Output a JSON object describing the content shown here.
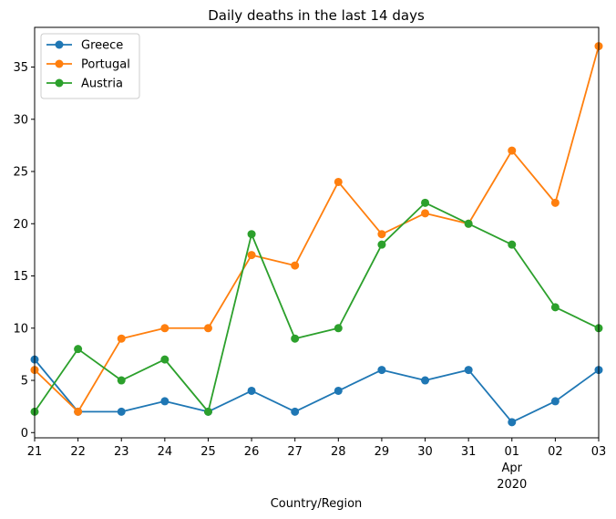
{
  "chart_data": {
    "type": "line",
    "title": "Daily deaths in the last 14 days",
    "xlabel": "Country/Region",
    "ylabel": "",
    "x": [
      "21",
      "22",
      "23",
      "24",
      "25",
      "26",
      "27",
      "28",
      "29",
      "30",
      "31",
      "01",
      "02",
      "03"
    ],
    "x_month_label": "Apr",
    "x_year_label": "2020",
    "ylim": [
      -0.5,
      38.8
    ],
    "yticks": [
      0,
      5,
      10,
      15,
      20,
      25,
      30,
      35
    ],
    "grid": false,
    "legend_position": "upper left",
    "series": [
      {
        "name": "Greece",
        "color": "#1f77b4",
        "values": [
          7,
          2,
          2,
          3,
          2,
          4,
          2,
          4,
          6,
          5,
          6,
          1,
          3,
          6
        ]
      },
      {
        "name": "Portugal",
        "color": "#ff7f0e",
        "values": [
          6,
          2,
          9,
          10,
          10,
          17,
          16,
          24,
          19,
          21,
          20,
          27,
          22,
          37
        ]
      },
      {
        "name": "Austria",
        "color": "#2ca02c",
        "values": [
          2,
          8,
          5,
          7,
          2,
          19,
          9,
          10,
          18,
          22,
          20,
          18,
          12,
          10
        ]
      }
    ]
  }
}
